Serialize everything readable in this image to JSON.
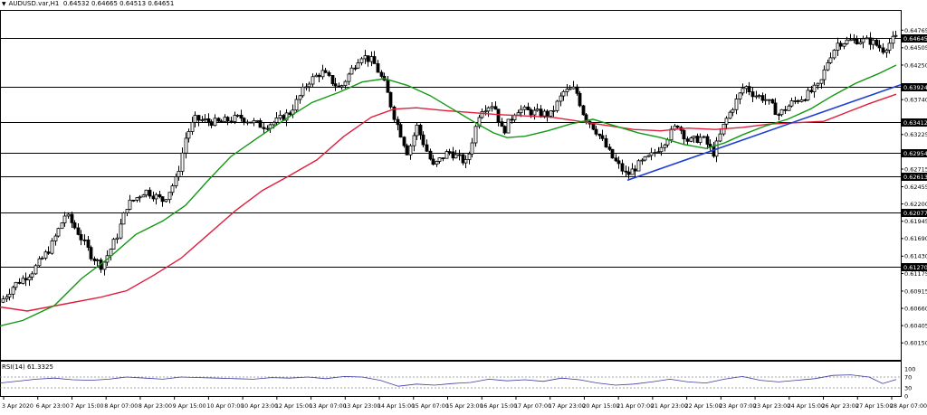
{
  "header": {
    "symbol": "AUDUSD.var,H1",
    "ohlc": "0.64532 0.64665 0.64513 0.64651"
  },
  "rsi": {
    "label": "RSI(14) 61.3325",
    "levels": [
      "100",
      "70",
      "30",
      "0"
    ]
  },
  "colors": {
    "bull": "#000000",
    "bear": "#000000",
    "ma_fast": "#119911",
    "ma_slow": "#e01e3c",
    "trendline": "#1f3fd6",
    "level": "#000000",
    "rsi": "#3a3aa0",
    "grid": "#cccccc"
  },
  "chart_data": {
    "type": "candlestick",
    "symbol": "AUDUSD.var",
    "timeframe": "H1",
    "ylim": [
      0.599,
      0.6505
    ],
    "price_ticks": [
      "0.64765",
      "0.64505",
      "0.64250",
      "0.63995",
      "0.63740",
      "0.63485",
      "0.63225",
      "0.62970",
      "0.62715",
      "0.62455",
      "0.62200",
      "0.61945",
      "0.61690",
      "0.61430",
      "0.61175",
      "0.60915",
      "0.60660",
      "0.60405",
      "0.60150"
    ],
    "x_labels": [
      "3 Apr 2020",
      "6 Apr 23:00",
      "7 Apr 15:00",
      "8 Apr 07:00",
      "8 Apr 23:00",
      "9 Apr 15:00",
      "10 Apr 07:00",
      "10 Apr 23:00",
      "12 Apr 15:00",
      "13 Apr 07:00",
      "13 Apr 23:00",
      "14 Apr 15:00",
      "15 Apr 07:00",
      "15 Apr 23:00",
      "16 Apr 15:00",
      "17 Apr 07:00",
      "17 Apr 23:00",
      "20 Apr 15:00",
      "21 Apr 07:00",
      "21 Apr 23:00",
      "22 Apr 15:00",
      "23 Apr 07:00",
      "23 Apr 23:00",
      "24 Apr 15:00",
      "26 Apr 23:00",
      "27 Apr 15:00",
      "28 Apr 07:00"
    ],
    "levels": [
      {
        "value": 0.64645,
        "label": "0.64645"
      },
      {
        "value": 0.63924,
        "label": "0.63924"
      },
      {
        "value": 0.63412,
        "label": "0.63412"
      },
      {
        "value": 0.62954,
        "label": "0.62954"
      },
      {
        "value": 0.62613,
        "label": "0.62613"
      },
      {
        "value": 0.62077,
        "label": "0.62077"
      },
      {
        "value": 0.6127,
        "label": "0.61270"
      }
    ],
    "path": [
      [
        0,
        0.6075
      ],
      [
        15,
        0.61
      ],
      [
        35,
        0.612
      ],
      [
        55,
        0.6155
      ],
      [
        72,
        0.6205
      ],
      [
        85,
        0.618
      ],
      [
        100,
        0.6145
      ],
      [
        112,
        0.6128
      ],
      [
        128,
        0.617
      ],
      [
        140,
        0.6218
      ],
      [
        160,
        0.624
      ],
      [
        180,
        0.6225
      ],
      [
        195,
        0.6258
      ],
      [
        205,
        0.632
      ],
      [
        215,
        0.6345
      ],
      [
        240,
        0.634
      ],
      [
        265,
        0.6348
      ],
      [
        290,
        0.6335
      ],
      [
        305,
        0.6342
      ],
      [
        320,
        0.6355
      ],
      [
        340,
        0.64
      ],
      [
        355,
        0.6415
      ],
      [
        375,
        0.639
      ],
      [
        398,
        0.644
      ],
      [
        412,
        0.643
      ],
      [
        425,
        0.6395
      ],
      [
        435,
        0.635
      ],
      [
        450,
        0.6295
      ],
      [
        460,
        0.6335
      ],
      [
        478,
        0.6275
      ],
      [
        495,
        0.6298
      ],
      [
        515,
        0.628
      ],
      [
        530,
        0.636
      ],
      [
        545,
        0.6368
      ],
      [
        555,
        0.6325
      ],
      [
        570,
        0.636
      ],
      [
        590,
        0.6355
      ],
      [
        608,
        0.6352
      ],
      [
        622,
        0.6385
      ],
      [
        635,
        0.639
      ],
      [
        645,
        0.635
      ],
      [
        660,
        0.6325
      ],
      [
        675,
        0.629
      ],
      [
        692,
        0.6262
      ],
      [
        705,
        0.6278
      ],
      [
        720,
        0.6292
      ],
      [
        735,
        0.6315
      ],
      [
        748,
        0.6338
      ],
      [
        760,
        0.6312
      ],
      [
        775,
        0.6318
      ],
      [
        788,
        0.6295
      ],
      [
        800,
        0.634
      ],
      [
        812,
        0.637
      ],
      [
        822,
        0.6395
      ],
      [
        832,
        0.6382
      ],
      [
        845,
        0.6375
      ],
      [
        860,
        0.6352
      ],
      [
        875,
        0.637
      ],
      [
        890,
        0.638
      ],
      [
        905,
        0.6395
      ],
      [
        915,
        0.6435
      ],
      [
        925,
        0.6458
      ],
      [
        945,
        0.6462
      ],
      [
        962,
        0.646
      ],
      [
        975,
        0.6448
      ],
      [
        988,
        0.6465
      ]
    ],
    "ma_fast": [
      [
        0,
        0.604
      ],
      [
        25,
        0.6048
      ],
      [
        60,
        0.607
      ],
      [
        90,
        0.611
      ],
      [
        120,
        0.614
      ],
      [
        150,
        0.6175
      ],
      [
        180,
        0.6195
      ],
      [
        205,
        0.6218
      ],
      [
        230,
        0.6255
      ],
      [
        255,
        0.629
      ],
      [
        285,
        0.6318
      ],
      [
        315,
        0.6345
      ],
      [
        345,
        0.637
      ],
      [
        375,
        0.6385
      ],
      [
        400,
        0.64
      ],
      [
        425,
        0.6405
      ],
      [
        450,
        0.6395
      ],
      [
        475,
        0.638
      ],
      [
        500,
        0.636
      ],
      [
        525,
        0.634
      ],
      [
        545,
        0.6325
      ],
      [
        560,
        0.6318
      ],
      [
        580,
        0.632
      ],
      [
        605,
        0.6328
      ],
      [
        630,
        0.6338
      ],
      [
        655,
        0.6345
      ],
      [
        680,
        0.6335
      ],
      [
        705,
        0.6325
      ],
      [
        730,
        0.6318
      ],
      [
        755,
        0.6308
      ],
      [
        780,
        0.6302
      ],
      [
        800,
        0.631
      ],
      [
        820,
        0.6322
      ],
      [
        845,
        0.6335
      ],
      [
        870,
        0.6345
      ],
      [
        895,
        0.636
      ],
      [
        920,
        0.638
      ],
      [
        945,
        0.6398
      ],
      [
        970,
        0.6412
      ],
      [
        990,
        0.6425
      ]
    ],
    "ma_slow": [
      [
        0,
        0.6068
      ],
      [
        30,
        0.6062
      ],
      [
        70,
        0.6072
      ],
      [
        110,
        0.6082
      ],
      [
        140,
        0.6092
      ],
      [
        170,
        0.6115
      ],
      [
        200,
        0.614
      ],
      [
        230,
        0.6175
      ],
      [
        260,
        0.621
      ],
      [
        290,
        0.624
      ],
      [
        320,
        0.6262
      ],
      [
        350,
        0.6285
      ],
      [
        380,
        0.632
      ],
      [
        410,
        0.6348
      ],
      [
        435,
        0.636
      ],
      [
        460,
        0.6362
      ],
      [
        490,
        0.6358
      ],
      [
        520,
        0.6355
      ],
      [
        550,
        0.6352
      ],
      [
        580,
        0.635
      ],
      [
        610,
        0.6348
      ],
      [
        640,
        0.6342
      ],
      [
        670,
        0.6336
      ],
      [
        700,
        0.633
      ],
      [
        730,
        0.6328
      ],
      [
        760,
        0.6332
      ],
      [
        790,
        0.633
      ],
      [
        820,
        0.6333
      ],
      [
        850,
        0.6338
      ],
      [
        880,
        0.634
      ],
      [
        910,
        0.6342
      ],
      [
        935,
        0.6355
      ],
      [
        960,
        0.6368
      ],
      [
        990,
        0.6382
      ]
    ],
    "trendline": [
      [
        693,
        0.6255
      ],
      [
        995,
        0.6396
      ]
    ],
    "rsi": [
      [
        0,
        48
      ],
      [
        20,
        55
      ],
      [
        40,
        62
      ],
      [
        60,
        66
      ],
      [
        80,
        60
      ],
      [
        100,
        58
      ],
      [
        120,
        62
      ],
      [
        140,
        70
      ],
      [
        160,
        66
      ],
      [
        180,
        62
      ],
      [
        200,
        70
      ],
      [
        220,
        68
      ],
      [
        240,
        66
      ],
      [
        260,
        64
      ],
      [
        280,
        62
      ],
      [
        300,
        68
      ],
      [
        320,
        66
      ],
      [
        340,
        70
      ],
      [
        360,
        64
      ],
      [
        380,
        72
      ],
      [
        400,
        70
      ],
      [
        420,
        58
      ],
      [
        440,
        36
      ],
      [
        460,
        44
      ],
      [
        480,
        40
      ],
      [
        500,
        46
      ],
      [
        520,
        50
      ],
      [
        540,
        62
      ],
      [
        560,
        56
      ],
      [
        580,
        60
      ],
      [
        600,
        54
      ],
      [
        620,
        66
      ],
      [
        640,
        60
      ],
      [
        660,
        48
      ],
      [
        680,
        40
      ],
      [
        700,
        44
      ],
      [
        720,
        52
      ],
      [
        740,
        62
      ],
      [
        760,
        52
      ],
      [
        780,
        48
      ],
      [
        800,
        62
      ],
      [
        820,
        72
      ],
      [
        840,
        58
      ],
      [
        860,
        52
      ],
      [
        880,
        58
      ],
      [
        900,
        64
      ],
      [
        920,
        76
      ],
      [
        940,
        78
      ],
      [
        960,
        70
      ],
      [
        975,
        46
      ],
      [
        990,
        61
      ]
    ]
  }
}
